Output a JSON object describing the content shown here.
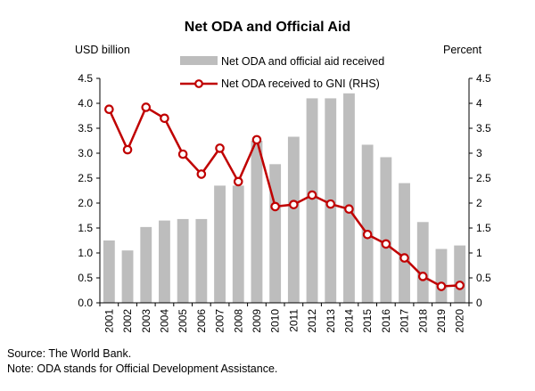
{
  "chart_data": {
    "type": "bar+line",
    "title": "Net ODA and Official Aid",
    "left_axis_label": "USD billion",
    "right_axis_label": "Percent",
    "categories": [
      "2001",
      "2002",
      "2003",
      "2004",
      "2005",
      "2006",
      "2007",
      "2008",
      "2009",
      "2010",
      "2011",
      "2012",
      "2013",
      "2014",
      "2015",
      "2016",
      "2017",
      "2018",
      "2019",
      "2020"
    ],
    "series": [
      {
        "name": "Net ODA and official aid received",
        "type": "bar",
        "axis": "left",
        "color": "#bdbdbd",
        "values": [
          1.25,
          1.05,
          1.52,
          1.65,
          1.68,
          1.68,
          2.35,
          2.35,
          3.25,
          2.78,
          3.33,
          4.1,
          4.1,
          4.2,
          3.17,
          2.92,
          2.4,
          1.62,
          1.08,
          1.15
        ]
      },
      {
        "name": "Net ODA received to GNI (RHS)",
        "type": "line",
        "axis": "right",
        "color": "#c00000",
        "values": [
          3.88,
          3.07,
          3.92,
          3.7,
          2.98,
          2.58,
          3.1,
          2.43,
          3.27,
          1.93,
          1.97,
          2.16,
          1.98,
          1.88,
          1.37,
          1.18,
          0.9,
          0.53,
          0.33,
          0.35
        ]
      }
    ],
    "left_axis": {
      "min": 0,
      "max": 4.5,
      "ticks": [
        "0.0",
        "0.5",
        "1.0",
        "1.5",
        "2.0",
        "2.5",
        "3.0",
        "3.5",
        "4.0",
        "4.5"
      ]
    },
    "right_axis": {
      "min": 0,
      "max": 4.5,
      "ticks": [
        "0",
        "0.5",
        "1",
        "1.5",
        "2",
        "2.5",
        "3",
        "3.5",
        "4",
        "4.5"
      ]
    },
    "grid": false,
    "legend_placement": "top-center"
  },
  "notes": {
    "source": "Source: The World Bank.",
    "note": "Note: ODA stands for Official Development Assistance."
  }
}
